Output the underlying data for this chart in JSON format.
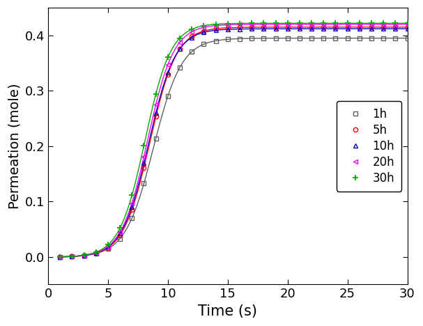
{
  "title": "",
  "xlabel": "Time (s)",
  "ylabel": "Permeation (mole)",
  "xlim": [
    0,
    30
  ],
  "ylim": [
    -0.05,
    0.45
  ],
  "xticks": [
    0,
    5,
    10,
    15,
    20,
    25,
    30
  ],
  "yticks": [
    0.0,
    0.1,
    0.2,
    0.3,
    0.4
  ],
  "series": [
    {
      "label": "1h",
      "color": "#606060",
      "marker": "s",
      "marker_size": 4.5,
      "plateau": 0.395,
      "k": 0.85,
      "t0": 8.8
    },
    {
      "label": "5h",
      "color": "#ff0000",
      "marker": "o",
      "marker_size": 4.5,
      "plateau": 0.415,
      "k": 0.9,
      "t0": 8.5
    },
    {
      "label": "10h",
      "color": "#0000cc",
      "marker": "^",
      "marker_size": 4.5,
      "plateau": 0.412,
      "k": 0.9,
      "t0": 8.4
    },
    {
      "label": "20h",
      "color": "#ff00ff",
      "marker": "<",
      "marker_size": 4.5,
      "plateau": 0.42,
      "k": 0.92,
      "t0": 8.3
    },
    {
      "label": "30h",
      "color": "#00aa00",
      "marker": "+",
      "marker_size": 6,
      "plateau": 0.422,
      "k": 0.93,
      "t0": 8.1
    }
  ],
  "xlabel_fontsize": 15,
  "ylabel_fontsize": 14,
  "tick_fontsize": 13,
  "legend_fontsize": 12
}
